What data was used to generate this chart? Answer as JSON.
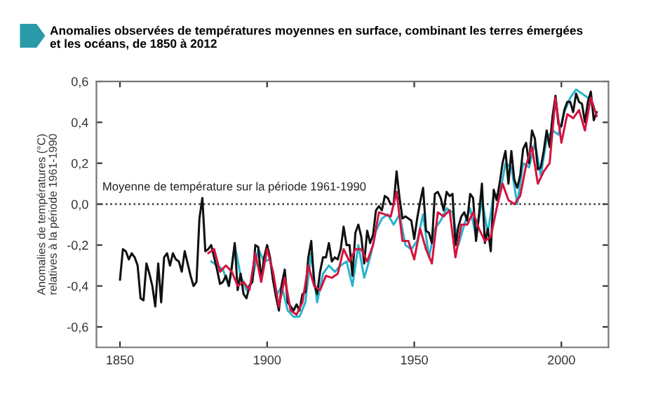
{
  "chart_data": {
    "type": "line",
    "title": "Anomalies observées de températures moyennes en surface, combinant les terres émergées\net les océans, de 1850 à 2012",
    "ylabel": "Anomalies de températures (°C)\nrelatives à la période 1961-1990",
    "xlim": [
      1842,
      2016
    ],
    "xticks": [
      1850,
      1900,
      1950,
      2000
    ],
    "ylim": [
      -0.7,
      0.6
    ],
    "yticks": [
      {
        "value": -0.6,
        "label": "-0,6"
      },
      {
        "value": -0.4,
        "label": "-0,4"
      },
      {
        "value": -0.2,
        "label": "-0,2"
      },
      {
        "value": 0,
        "label": "0,0"
      },
      {
        "value": 0.2,
        "label": "0,2"
      },
      {
        "value": 0.4,
        "label": "0,4"
      },
      {
        "value": 0.6,
        "label": "0,6"
      }
    ],
    "grid": false,
    "legend": false,
    "marker": "none",
    "line_style": "solid",
    "ref_lines": [
      {
        "axis": "y",
        "value": 0,
        "label": "Moyenne de température sur la période 1961-1990",
        "color": "#333333",
        "line_style": "dotted"
      }
    ],
    "series": [
      {
        "color": "#2ab4cc",
        "x": [
          1881,
          1883,
          1885,
          1887,
          1889,
          1891,
          1893,
          1895,
          1897,
          1899,
          1901,
          1903,
          1905,
          1907,
          1909,
          1911,
          1913,
          1915,
          1917,
          1919,
          1921,
          1923,
          1925,
          1927,
          1929,
          1931,
          1933,
          1935,
          1937,
          1939,
          1941,
          1943,
          1945,
          1947,
          1949,
          1951,
          1953,
          1955,
          1957,
          1959,
          1961,
          1963,
          1965,
          1967,
          1969,
          1971,
          1973,
          1975,
          1977,
          1979,
          1981,
          1983,
          1985,
          1987,
          1989,
          1991,
          1993,
          1995,
          1997,
          1999,
          2001,
          2003,
          2005,
          2007,
          2009,
          2011
        ],
        "values": [
          -0.28,
          -0.3,
          -0.32,
          -0.4,
          -0.2,
          -0.35,
          -0.42,
          -0.37,
          -0.22,
          -0.28,
          -0.27,
          -0.45,
          -0.4,
          -0.52,
          -0.55,
          -0.55,
          -0.48,
          -0.24,
          -0.48,
          -0.34,
          -0.3,
          -0.33,
          -0.3,
          -0.28,
          -0.4,
          -0.2,
          -0.36,
          -0.26,
          -0.13,
          -0.07,
          -0.05,
          -0.1,
          -0.05,
          -0.2,
          -0.22,
          -0.18,
          -0.05,
          -0.26,
          -0.12,
          -0.08,
          -0.02,
          -0.04,
          -0.2,
          -0.1,
          -0.02,
          -0.16,
          0.02,
          -0.14,
          0.05,
          0.04,
          0.2,
          0.18,
          0.0,
          0.2,
          0.18,
          0.3,
          0.14,
          0.32,
          0.36,
          0.34,
          0.45,
          0.52,
          0.56,
          0.54,
          0.52,
          0.48
        ]
      },
      {
        "color": "#111111",
        "x": [
          1850,
          1851,
          1852,
          1853,
          1854,
          1855,
          1856,
          1857,
          1858,
          1859,
          1860,
          1861,
          1862,
          1863,
          1864,
          1865,
          1866,
          1867,
          1868,
          1869,
          1870,
          1871,
          1872,
          1873,
          1874,
          1875,
          1876,
          1877,
          1878,
          1879,
          1880,
          1881,
          1882,
          1883,
          1884,
          1885,
          1886,
          1887,
          1888,
          1889,
          1890,
          1891,
          1892,
          1893,
          1894,
          1895,
          1896,
          1897,
          1898,
          1899,
          1900,
          1901,
          1902,
          1903,
          1904,
          1905,
          1906,
          1907,
          1908,
          1909,
          1910,
          1911,
          1912,
          1913,
          1914,
          1915,
          1916,
          1917,
          1918,
          1919,
          1920,
          1921,
          1922,
          1923,
          1924,
          1925,
          1926,
          1927,
          1928,
          1929,
          1930,
          1931,
          1932,
          1933,
          1934,
          1935,
          1936,
          1937,
          1938,
          1939,
          1940,
          1941,
          1942,
          1943,
          1944,
          1945,
          1946,
          1947,
          1948,
          1949,
          1950,
          1951,
          1952,
          1953,
          1954,
          1955,
          1956,
          1957,
          1958,
          1959,
          1960,
          1961,
          1962,
          1963,
          1964,
          1965,
          1966,
          1967,
          1968,
          1969,
          1970,
          1971,
          1972,
          1973,
          1974,
          1975,
          1976,
          1977,
          1978,
          1979,
          1980,
          1981,
          1982,
          1983,
          1984,
          1985,
          1986,
          1987,
          1988,
          1989,
          1990,
          1991,
          1992,
          1993,
          1994,
          1995,
          1996,
          1997,
          1998,
          1999,
          2000,
          2001,
          2002,
          2003,
          2004,
          2005,
          2006,
          2007,
          2008,
          2009,
          2010,
          2011,
          2012
        ],
        "values": [
          -0.37,
          -0.22,
          -0.23,
          -0.27,
          -0.24,
          -0.26,
          -0.3,
          -0.46,
          -0.47,
          -0.29,
          -0.34,
          -0.4,
          -0.5,
          -0.29,
          -0.48,
          -0.26,
          -0.24,
          -0.3,
          -0.24,
          -0.27,
          -0.28,
          -0.33,
          -0.23,
          -0.29,
          -0.35,
          -0.4,
          -0.38,
          -0.07,
          0.03,
          -0.23,
          -0.22,
          -0.2,
          -0.26,
          -0.32,
          -0.39,
          -0.38,
          -0.35,
          -0.4,
          -0.31,
          -0.19,
          -0.42,
          -0.34,
          -0.44,
          -0.46,
          -0.4,
          -0.38,
          -0.2,
          -0.21,
          -0.37,
          -0.26,
          -0.2,
          -0.26,
          -0.37,
          -0.45,
          -0.52,
          -0.39,
          -0.32,
          -0.48,
          -0.5,
          -0.52,
          -0.49,
          -0.52,
          -0.44,
          -0.43,
          -0.26,
          -0.18,
          -0.39,
          -0.44,
          -0.33,
          -0.26,
          -0.26,
          -0.19,
          -0.28,
          -0.26,
          -0.27,
          -0.22,
          -0.11,
          -0.2,
          -0.2,
          -0.35,
          -0.14,
          -0.1,
          -0.16,
          -0.29,
          -0.13,
          -0.19,
          -0.15,
          -0.03,
          -0.01,
          -0.03,
          0.04,
          0.03,
          0.0,
          0.0,
          0.16,
          0.03,
          -0.07,
          -0.06,
          -0.07,
          -0.08,
          -0.17,
          -0.07,
          0.01,
          0.08,
          -0.13,
          -0.14,
          -0.19,
          0.05,
          0.06,
          0.03,
          -0.03,
          0.06,
          0.04,
          0.05,
          -0.2,
          -0.11,
          -0.06,
          -0.04,
          -0.08,
          0.05,
          0.03,
          -0.18,
          -0.05,
          0.1,
          -0.19,
          -0.12,
          -0.23,
          0.07,
          0.02,
          0.1,
          0.2,
          0.26,
          0.1,
          0.26,
          0.12,
          0.08,
          0.14,
          0.27,
          0.3,
          0.2,
          0.36,
          0.32,
          0.17,
          0.18,
          0.26,
          0.36,
          0.28,
          0.43,
          0.53,
          0.39,
          0.38,
          0.46,
          0.5,
          0.5,
          0.45,
          0.54,
          0.5,
          0.49,
          0.4,
          0.5,
          0.55,
          0.41,
          0.45
        ]
      },
      {
        "color": "#d4143f",
        "x": [
          1880,
          1882,
          1884,
          1886,
          1888,
          1890,
          1892,
          1894,
          1896,
          1898,
          1900,
          1902,
          1904,
          1906,
          1908,
          1910,
          1912,
          1914,
          1916,
          1918,
          1920,
          1922,
          1924,
          1926,
          1928,
          1930,
          1932,
          1934,
          1936,
          1938,
          1940,
          1942,
          1944,
          1946,
          1948,
          1950,
          1952,
          1954,
          1956,
          1958,
          1960,
          1962,
          1964,
          1966,
          1968,
          1970,
          1972,
          1974,
          1976,
          1978,
          1980,
          1982,
          1984,
          1986,
          1988,
          1990,
          1992,
          1994,
          1996,
          1998,
          2000,
          2002,
          2004,
          2006,
          2008,
          2010,
          2012
        ],
        "values": [
          -0.24,
          -0.22,
          -0.33,
          -0.3,
          -0.33,
          -0.4,
          -0.38,
          -0.42,
          -0.24,
          -0.38,
          -0.22,
          -0.33,
          -0.5,
          -0.36,
          -0.52,
          -0.54,
          -0.48,
          -0.3,
          -0.4,
          -0.42,
          -0.35,
          -0.36,
          -0.34,
          -0.22,
          -0.28,
          -0.22,
          -0.22,
          -0.28,
          -0.2,
          -0.04,
          -0.05,
          -0.06,
          0.06,
          -0.18,
          -0.18,
          -0.27,
          -0.12,
          -0.22,
          -0.29,
          -0.04,
          -0.06,
          -0.03,
          -0.26,
          -0.1,
          -0.1,
          -0.04,
          -0.12,
          -0.18,
          -0.16,
          -0.02,
          0.1,
          0.02,
          0.0,
          0.04,
          0.19,
          0.28,
          0.1,
          0.16,
          0.2,
          0.52,
          0.3,
          0.44,
          0.42,
          0.46,
          0.36,
          0.52,
          0.43
        ]
      }
    ]
  }
}
